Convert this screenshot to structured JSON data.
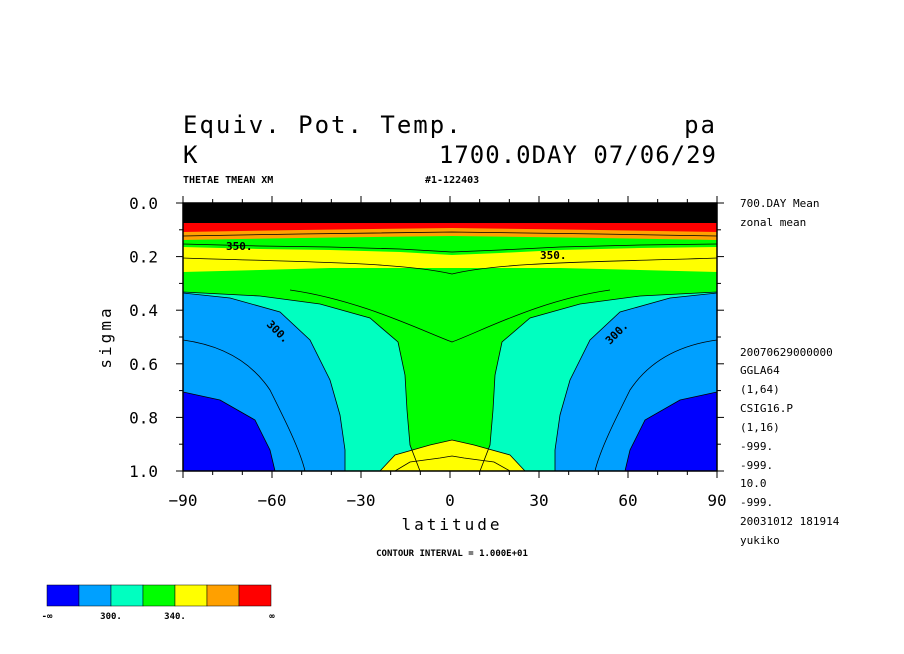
{
  "header": {
    "title": "Equiv. Pot. Temp.",
    "units": "K",
    "level": "pa",
    "time": "1700.0DAY 07/06/29",
    "variable": "THETAE TMEAN XM",
    "run_id": "#1-122403"
  },
  "side_info": {
    "top": [
      "700.DAY Mean",
      "zonal mean"
    ],
    "bottom": [
      "20070629000000",
      "GGLA64",
      "(1,64)",
      "CSIG16.P",
      "(1,16)",
      "-999.",
      "-999.",
      "10.0",
      "-999.",
      "20031012 181914",
      "yukiko"
    ]
  },
  "footer": {
    "contour_interval": "CONTOUR INTERVAL = 1.000E+01"
  },
  "colors": {
    "levels": [
      "#0000ff",
      "#00a0ff",
      "#00ffc0",
      "#00ff00",
      "#ffff00",
      "#ffa000",
      "#ff0000"
    ],
    "dark_top": "#000000"
  },
  "colorbar": {
    "labels": [
      "-∞",
      "300.",
      "340.",
      "∞"
    ]
  },
  "chart_data": {
    "type": "contour",
    "title": "Equiv. Pot. Temp.",
    "xlabel": "latitude",
    "ylabel": "sigma",
    "x_ticks": [
      -90,
      -60,
      -30,
      0,
      30,
      60,
      90
    ],
    "x_tick_labels": [
      "−90",
      "−60",
      "−30",
      "0",
      "30",
      "60",
      "90"
    ],
    "y_ticks": [
      0.0,
      0.2,
      0.4,
      0.6,
      0.8,
      1.0
    ],
    "y_tick_labels": [
      "0.0",
      "0.2",
      "0.4",
      "0.6",
      "0.8",
      "1.0"
    ],
    "xlim": [
      -90,
      90
    ],
    "ylim": [
      1.0,
      0.0
    ],
    "contour_interval": 10,
    "contour_labels": [
      {
        "text": "300.",
        "lat": -55,
        "sigma": 0.49,
        "angle": 45
      },
      {
        "text": "300.",
        "lat": 57,
        "sigma": 0.49,
        "angle": -45
      },
      {
        "text": "350.",
        "lat": -69,
        "sigma": 0.17,
        "angle": 0
      },
      {
        "text": "350.",
        "lat": 34,
        "sigma": 0.2,
        "angle": 0
      }
    ],
    "regions": [
      {
        "level": "<300",
        "lat_band": "high latitudes, sigma > 0.35"
      },
      {
        "level": "300-320",
        "lat_band": "mid latitudes"
      },
      {
        "level": "320-340",
        "lat_band": "tropics, sigma 0.25-0.95"
      },
      {
        "level": "340-350",
        "lat_band": "near surface equator and sigma ~0.2"
      },
      {
        "level": ">350",
        "lat_band": "upper levels, sigma < 0.15"
      }
    ]
  }
}
